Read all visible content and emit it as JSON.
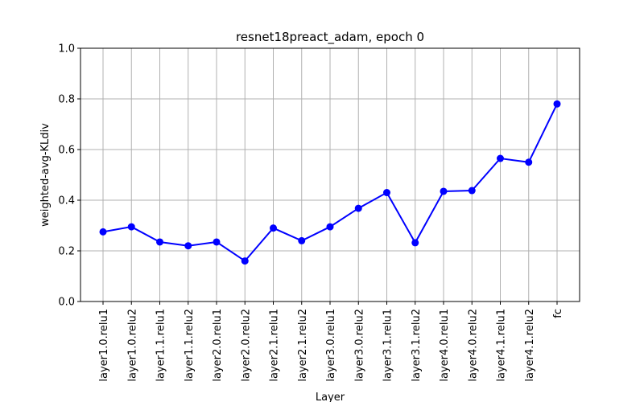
{
  "chart_data": {
    "type": "line",
    "title": "resnet18preact_adam, epoch 0",
    "xlabel": "Layer",
    "ylabel": "weighted-avg-KLdiv",
    "ylim": [
      0.0,
      1.0
    ],
    "yticks": [
      "0.0",
      "0.2",
      "0.4",
      "0.6",
      "0.8",
      "1.0"
    ],
    "grid": true,
    "categories": [
      "layer1.0.relu1",
      "layer1.0.relu2",
      "layer1.1.relu1",
      "layer1.1.relu2",
      "layer2.0.relu1",
      "layer2.0.relu2",
      "layer2.1.relu1",
      "layer2.1.relu2",
      "layer3.0.relu1",
      "layer3.0.relu2",
      "layer3.1.relu1",
      "layer3.1.relu2",
      "layer4.0.relu1",
      "layer4.0.relu2",
      "layer4.1.relu1",
      "layer4.1.relu2",
      "fc"
    ],
    "series": [
      {
        "values": [
          0.275,
          0.295,
          0.235,
          0.22,
          0.235,
          0.16,
          0.29,
          0.24,
          0.295,
          0.368,
          0.43,
          0.232,
          0.435,
          0.438,
          0.565,
          0.55,
          0.78
        ],
        "color": "#0000ff",
        "marker": "circle"
      }
    ]
  }
}
